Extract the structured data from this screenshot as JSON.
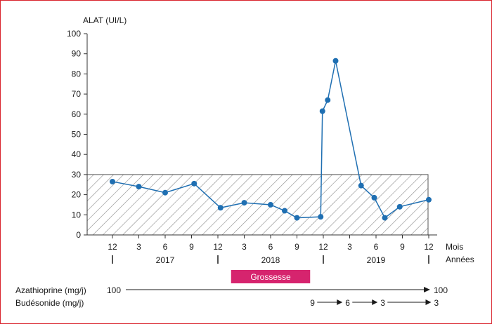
{
  "chart_data": {
    "type": "line",
    "ylabel": "ALAT (UI/L)",
    "ylim": [
      0,
      100
    ],
    "yticks": [
      0,
      10,
      20,
      30,
      40,
      50,
      60,
      70,
      80,
      90,
      100
    ],
    "reference_band": [
      0,
      30
    ],
    "x_month_ticks": [
      {
        "label": "12",
        "t": 0
      },
      {
        "label": "3",
        "t": 3
      },
      {
        "label": "6",
        "t": 6
      },
      {
        "label": "9",
        "t": 9
      },
      {
        "label": "12",
        "t": 12
      },
      {
        "label": "3",
        "t": 15
      },
      {
        "label": "6",
        "t": 18
      },
      {
        "label": "9",
        "t": 21
      },
      {
        "label": "12",
        "t": 24
      },
      {
        "label": "3",
        "t": 27
      },
      {
        "label": "6",
        "t": 30
      },
      {
        "label": "9",
        "t": 33
      },
      {
        "label": "12",
        "t": 36
      }
    ],
    "x_unit_labels": {
      "months": "Mois",
      "years": "Années"
    },
    "years": [
      {
        "label": "2017",
        "t": 6
      },
      {
        "label": "2018",
        "t": 18
      },
      {
        "label": "2019",
        "t": 30
      }
    ],
    "year_separators": [
      0,
      12,
      24,
      36
    ],
    "series": [
      {
        "points": [
          {
            "t": 0.0,
            "y": 26.5
          },
          {
            "t": 3.0,
            "y": 24.0
          },
          {
            "t": 6.0,
            "y": 21.0
          },
          {
            "t": 9.3,
            "y": 25.5
          },
          {
            "t": 12.3,
            "y": 13.5
          },
          {
            "t": 15.0,
            "y": 16.0
          },
          {
            "t": 18.0,
            "y": 15.0
          },
          {
            "t": 19.6,
            "y": 12.0
          },
          {
            "t": 21.0,
            "y": 8.5
          },
          {
            "t": 23.7,
            "y": 9.0
          },
          {
            "t": 23.9,
            "y": 61.5
          },
          {
            "t": 24.5,
            "y": 67.0
          },
          {
            "t": 25.4,
            "y": 86.5
          },
          {
            "t": 28.3,
            "y": 24.5
          },
          {
            "t": 29.8,
            "y": 18.5
          },
          {
            "t": 31.0,
            "y": 8.5
          },
          {
            "t": 32.7,
            "y": 14.0
          },
          {
            "t": 36.0,
            "y": 17.5
          }
        ]
      }
    ],
    "pregnancy": {
      "label": "Grossesse",
      "t_start": 13.5,
      "t_end": 22.5
    },
    "treatments": [
      {
        "label": "Azathioprine (mg/j)",
        "start_value": "100",
        "end_value": "100"
      },
      {
        "label": "Budésonide (mg/j)",
        "steps": [
          "9",
          "6",
          "3",
          "3"
        ],
        "step_t": [
          22.5,
          26.5,
          30.5,
          36.6
        ]
      }
    ]
  },
  "colors": {
    "line": "#1f6fb2",
    "marker": "#1f6fb2",
    "band_hatch": "#8a8a8a",
    "pregnancy": "#d6246e",
    "frame": "#d9232d",
    "axis": "#333333"
  }
}
